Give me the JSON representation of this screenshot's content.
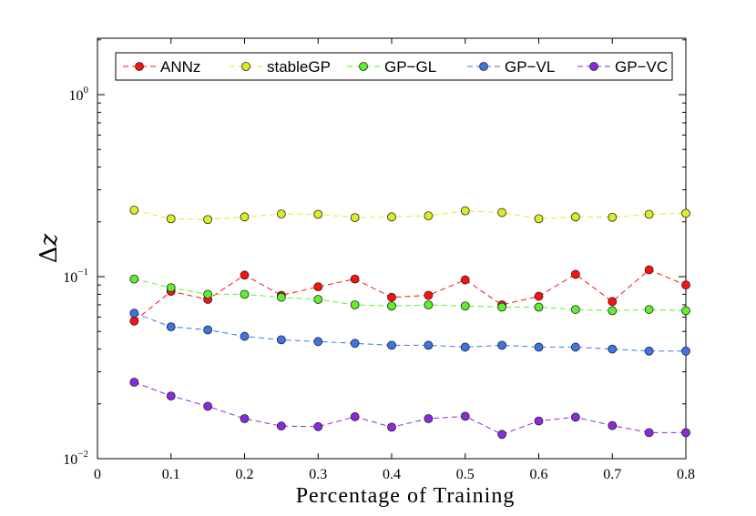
{
  "chart_data": {
    "type": "line",
    "xlabel": "Percentage of Training",
    "ylabel_base": "Δ",
    "ylabel_var": "z",
    "xlim": [
      0,
      0.8
    ],
    "ylim": [
      0.01,
      2
    ],
    "yscale": "log",
    "legend_position": "top",
    "x_ticks": [
      {
        "value": 0,
        "label": "0"
      },
      {
        "value": 0.1,
        "label": "0.1"
      },
      {
        "value": 0.2,
        "label": "0.2"
      },
      {
        "value": 0.3,
        "label": "0.3"
      },
      {
        "value": 0.4,
        "label": "0.4"
      },
      {
        "value": 0.5,
        "label": "0.5"
      },
      {
        "value": 0.6,
        "label": "0.6"
      },
      {
        "value": 0.7,
        "label": "0.7"
      },
      {
        "value": 0.8,
        "label": "0.8"
      }
    ],
    "y_ticks": [
      {
        "value": 0.01,
        "base": "10",
        "exp": "−2"
      },
      {
        "value": 0.1,
        "base": "10",
        "exp": "−1"
      },
      {
        "value": 1,
        "base": "10",
        "exp": "0"
      }
    ],
    "x": [
      0.05,
      0.1,
      0.15,
      0.2,
      0.25,
      0.3,
      0.35,
      0.4,
      0.45,
      0.5,
      0.55,
      0.6,
      0.65,
      0.7,
      0.75,
      0.8
    ],
    "series": [
      {
        "name": "ANNz",
        "color": "#ff1010",
        "values": [
          0.057,
          0.083,
          0.075,
          0.102,
          0.079,
          0.088,
          0.097,
          0.077,
          0.079,
          0.096,
          0.07,
          0.078,
          0.103,
          0.073,
          0.109,
          0.09
        ]
      },
      {
        "name": "stableGP",
        "color": "#dded22",
        "values": [
          0.232,
          0.208,
          0.206,
          0.213,
          0.221,
          0.22,
          0.211,
          0.213,
          0.216,
          0.23,
          0.225,
          0.208,
          0.213,
          0.212,
          0.22,
          0.223
        ]
      },
      {
        "name": "GP−GL",
        "color": "#5ef02a",
        "values": [
          0.097,
          0.087,
          0.08,
          0.08,
          0.077,
          0.075,
          0.07,
          0.069,
          0.07,
          0.069,
          0.068,
          0.068,
          0.066,
          0.065,
          0.066,
          0.065
        ]
      },
      {
        "name": "GP−VL",
        "color": "#3f73e6",
        "values": [
          0.063,
          0.053,
          0.051,
          0.047,
          0.045,
          0.044,
          0.043,
          0.042,
          0.042,
          0.041,
          0.042,
          0.041,
          0.041,
          0.04,
          0.039,
          0.039
        ]
      },
      {
        "name": "GP−VC",
        "color": "#8a2ae0",
        "values": [
          0.0263,
          0.0221,
          0.0194,
          0.0166,
          0.0151,
          0.015,
          0.017,
          0.0149,
          0.0166,
          0.0171,
          0.0136,
          0.0161,
          0.0169,
          0.0152,
          0.0139,
          0.0139
        ]
      }
    ]
  }
}
